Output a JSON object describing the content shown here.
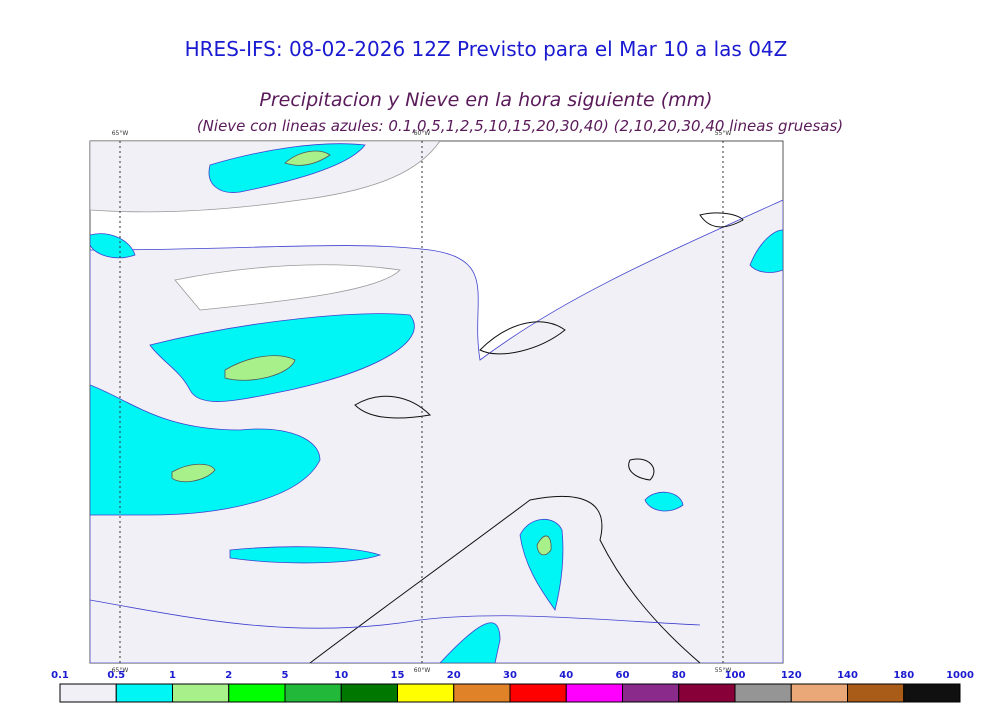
{
  "header": {
    "title": "HRES-IFS: 08-02-2026 12Z Previsto para el Mar 10 a las 04Z",
    "subtitle": "Precipitacion y Nieve en la hora siguiente (mm)",
    "note": "(Nieve con lineas azules: 0.1,0.5,1,2,5,10,15,20,30,40)  (2,10,20,30,40 lineas gruesas)"
  },
  "map": {
    "longitudes": [
      "65°W",
      "60°W",
      "55°W"
    ]
  },
  "colorbar": {
    "labels": [
      "0.1",
      "0.5",
      "1",
      "2",
      "5",
      "10",
      "15",
      "20",
      "30",
      "40",
      "60",
      "80",
      "100",
      "120",
      "140",
      "180",
      "1000"
    ],
    "colors": [
      "#f0f0f6",
      "#00f5f5",
      "#a8f08a",
      "#00ff00",
      "#22b83a",
      "#007800",
      "#ffff00",
      "#e08228",
      "#ff0000",
      "#ff00ff",
      "#8a2a8a",
      "#880038",
      "#959595",
      "#eaa878",
      "#a85c18",
      "#101010"
    ]
  }
}
